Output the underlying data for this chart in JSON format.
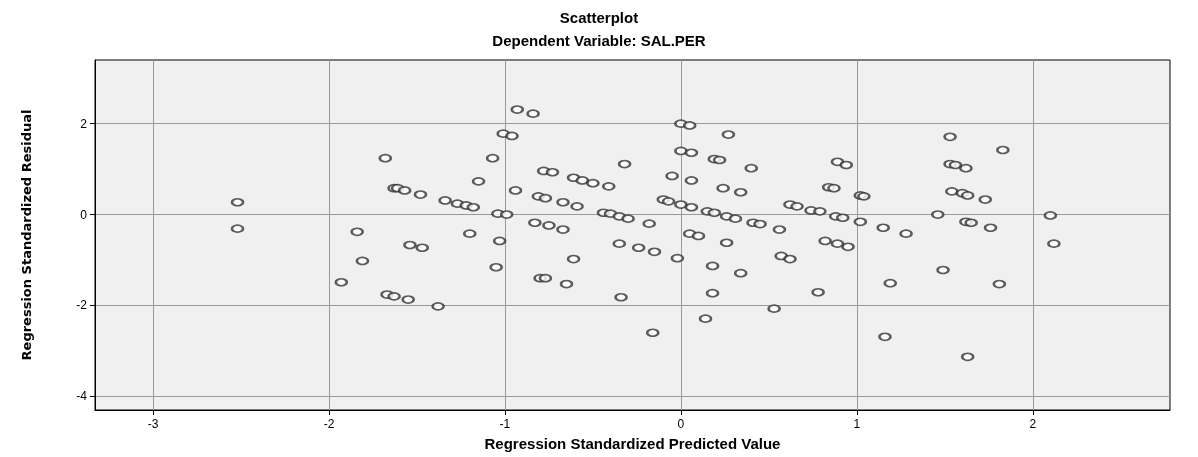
{
  "chart_data": {
    "type": "scatter",
    "title": "Scatterplot",
    "subtitle": "Dependent Variable: SAL.PER",
    "xlabel": "Regression Standardized Predicted Value",
    "ylabel": "Regression Standardized Residual",
    "xlim": [
      -3.33,
      2.78
    ],
    "ylim": [
      -4.3,
      3.4
    ],
    "xticks": [
      -3,
      -2,
      -1,
      0,
      1,
      2
    ],
    "yticks": [
      -4,
      -2,
      0,
      2
    ],
    "grid": true,
    "marker": "circle",
    "series": [
      {
        "color": "#333333",
        "x": [
          -2.52,
          -2.52,
          -1.68,
          -1.63,
          -1.84,
          -1.81,
          -1.93,
          -1.67,
          -1.63,
          -0.93,
          -0.84,
          -1.01,
          -0.96,
          -1.07,
          -1.15,
          -1.61,
          -1.57,
          -1.48,
          -1.34,
          -1.27,
          -1.22,
          -1.18,
          -1.04,
          -0.99,
          -0.94,
          -0.78,
          -0.73,
          -0.61,
          -0.56,
          -0.5,
          -0.41,
          -0.32,
          -0.05,
          0,
          0,
          -0.81,
          -0.77,
          -0.67,
          -0.59,
          -0.44,
          -0.4,
          -0.35,
          -0.3,
          -0.18,
          -0.83,
          -0.75,
          -0.67,
          -1.2,
          -1.03,
          -1.54,
          -1.47,
          -1.05,
          -0.61,
          -0.35,
          -0.24,
          -0.15,
          -0.02,
          -0.8,
          -0.77,
          -0.65,
          -1.55,
          -1.38,
          -0.34,
          -0.16,
          0.05,
          0.27,
          0.06,
          0.19,
          0.22,
          0.4,
          0.89,
          0.94,
          0.06,
          0.24,
          0.34,
          0.84,
          0.87,
          1.02,
          1.04,
          -0.1,
          -0.07,
          0,
          0.06,
          0.15,
          0.19,
          0.26,
          0.31,
          0.41,
          0.45,
          0.56,
          0.62,
          0.66,
          0.74,
          0.79,
          0.88,
          0.92,
          1.02,
          1.15,
          1.28,
          0.05,
          0.1,
          0.26,
          0.82,
          0.89,
          0.95,
          0.18,
          0.34,
          0.57,
          0.62,
          0.18,
          0.78,
          1.19,
          0.53,
          0.14,
          1.16,
          1.53,
          1.83,
          1.53,
          1.56,
          1.62,
          1.54,
          1.6,
          1.63,
          1.73,
          1.46,
          1.62,
          1.65,
          1.76,
          2.1,
          2.12,
          1.49,
          1.81,
          1.63
        ],
        "values": [
          -0.31,
          0.27,
          1.24,
          0.58,
          -0.38,
          -1.02,
          -1.49,
          -1.76,
          -1.8,
          2.31,
          2.22,
          1.78,
          1.73,
          1.24,
          0.73,
          0.58,
          0.53,
          0.44,
          0.31,
          0.24,
          0.2,
          0.16,
          0.02,
          0,
          0.53,
          0.96,
          0.93,
          0.81,
          0.75,
          0.69,
          0.62,
          1.11,
          0.85,
          2,
          1.4,
          0.4,
          0.36,
          0.27,
          0.18,
          0.04,
          0.02,
          -0.04,
          -0.09,
          -0.2,
          -0.18,
          -0.24,
          -0.33,
          -0.42,
          -0.58,
          -0.67,
          -0.73,
          -1.16,
          -0.98,
          -0.64,
          -0.73,
          -0.82,
          -0.96,
          -1.4,
          -1.4,
          -1.53,
          -1.87,
          -2.02,
          -1.82,
          -2.6,
          1.96,
          1.76,
          1.36,
          1.22,
          1.2,
          1.02,
          1.16,
          1.09,
          0.75,
          0.58,
          0.49,
          0.6,
          0.58,
          0.42,
          0.4,
          0.33,
          0.29,
          0.22,
          0.16,
          0.07,
          0.04,
          -0.04,
          -0.09,
          -0.18,
          -0.21,
          -0.33,
          0.22,
          0.18,
          0.09,
          0.07,
          -0.04,
          -0.07,
          -0.16,
          -0.29,
          -0.42,
          -0.42,
          -0.47,
          -0.62,
          -0.58,
          -0.64,
          -0.71,
          -1.13,
          -1.29,
          -0.91,
          -0.98,
          -1.73,
          -1.71,
          -1.51,
          -2.07,
          -2.29,
          -2.69,
          1.71,
          1.42,
          1.11,
          1.09,
          1.02,
          0.51,
          0.47,
          0.42,
          0.33,
          0,
          -0.16,
          -0.18,
          -0.29,
          -0.02,
          -0.64,
          -1.22,
          -1.53,
          -3.13
        ]
      }
    ]
  }
}
